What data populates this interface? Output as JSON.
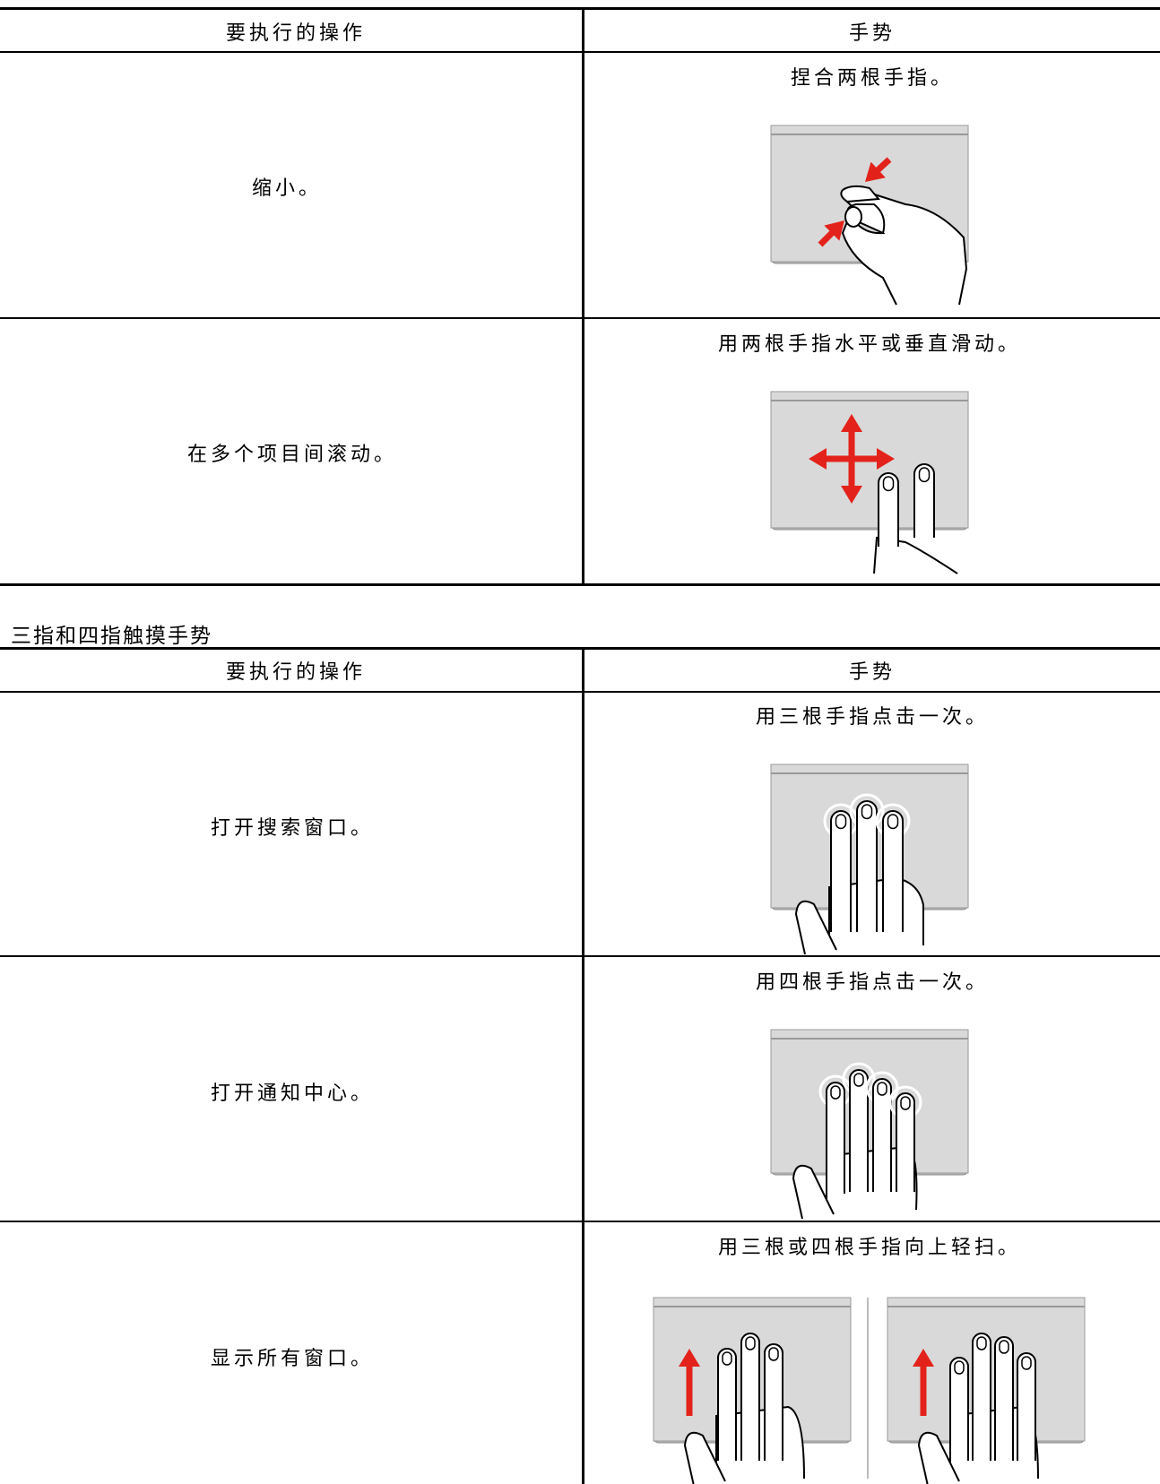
{
  "table1": {
    "headers": [
      "要执行的操作",
      "手势"
    ],
    "rows": [
      {
        "action": "缩小。",
        "gesture": "捏合两根手指。"
      },
      {
        "action": "在多个项目间滚动。",
        "gesture": "用两根手指水平或垂直滑动。"
      }
    ]
  },
  "section_title": "三指和四指触摸手势",
  "table2": {
    "headers": [
      "要执行的操作",
      "手势"
    ],
    "rows": [
      {
        "action": "打开搜索窗口。",
        "gesture": "用三根手指点击一次。"
      },
      {
        "action": "打开通知中心。",
        "gesture": "用四根手指点击一次。"
      },
      {
        "action": "显示所有窗口。",
        "gesture": "用三根或四根手指向上轻扫。"
      }
    ]
  }
}
